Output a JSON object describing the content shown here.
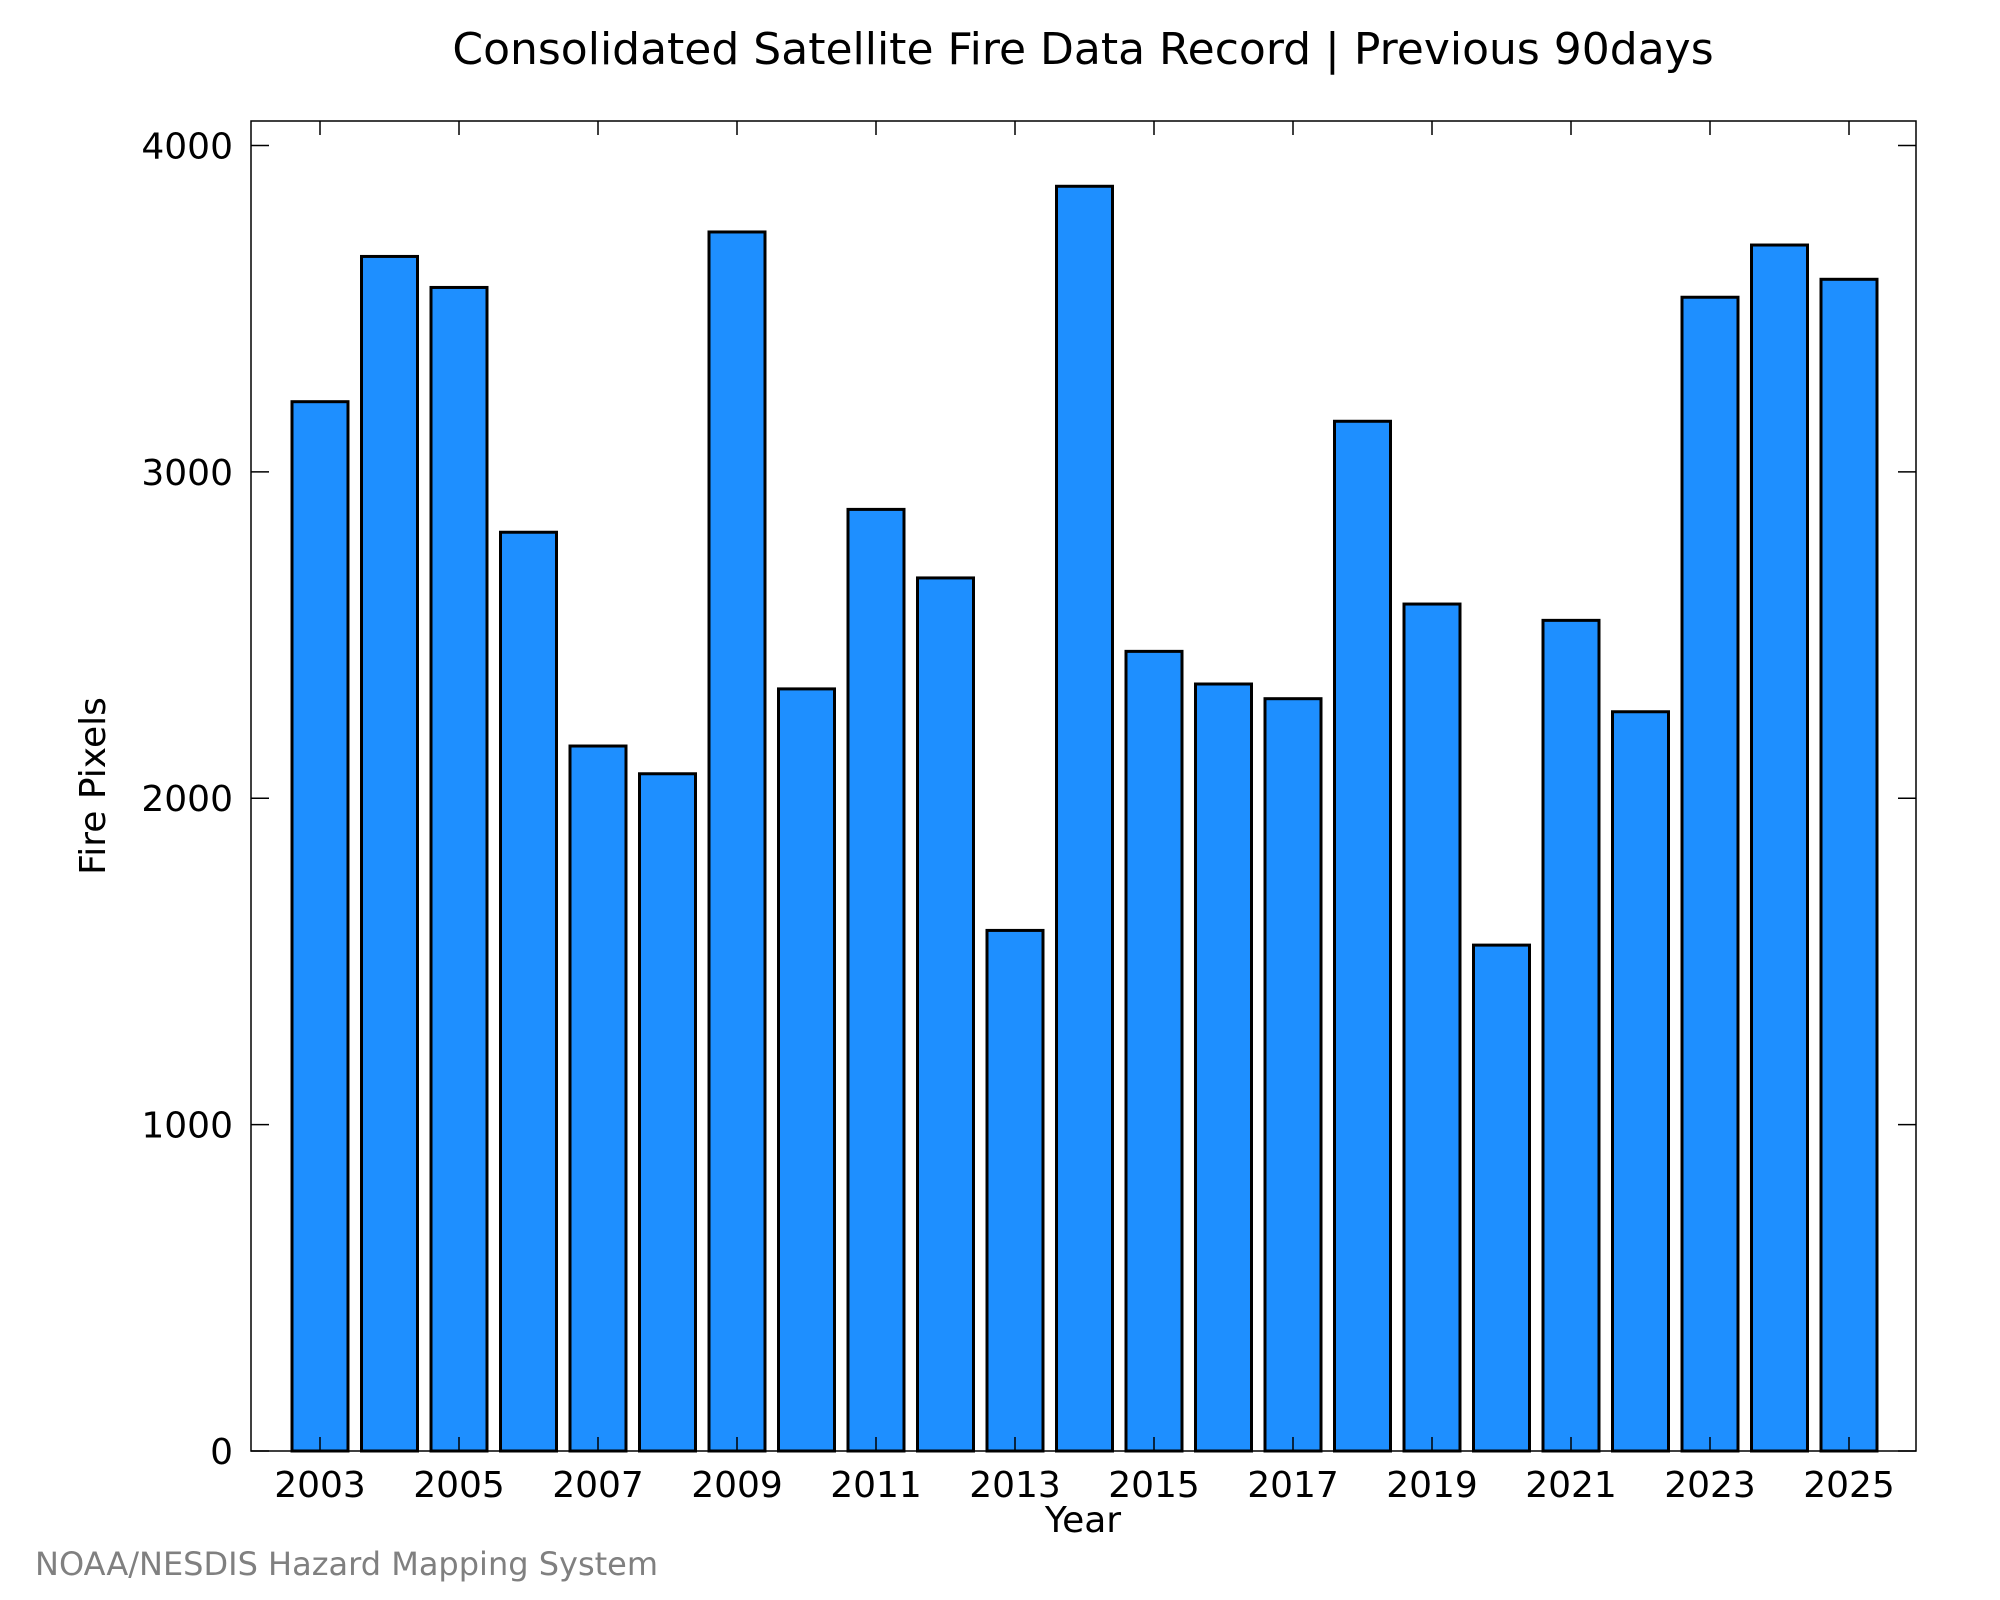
{
  "chart_data": {
    "type": "bar",
    "title": "Consolidated Satellite Fire Data Record | Previous 90days",
    "xlabel": "Year",
    "ylabel": "Fire Pixels",
    "categories": [
      "2003",
      "2004",
      "2005",
      "2006",
      "2007",
      "2008",
      "2009",
      "2010",
      "2011",
      "2012",
      "2013",
      "2014",
      "2015",
      "2016",
      "2017",
      "2018",
      "2019",
      "2020",
      "2021",
      "2022",
      "2023",
      "2024",
      "2025"
    ],
    "values": [
      3215,
      3660,
      3565,
      2815,
      2160,
      2075,
      3735,
      2335,
      2885,
      2675,
      1595,
      3875,
      2450,
      2350,
      2305,
      3155,
      2595,
      1550,
      2545,
      2265,
      3535,
      3695,
      3590
    ],
    "x_tick_labels": [
      "2003",
      "2005",
      "2007",
      "2009",
      "2011",
      "2013",
      "2015",
      "2017",
      "2019",
      "2021",
      "2023",
      "2025"
    ],
    "y_tick_labels": [
      "0",
      "1000",
      "2000",
      "3000",
      "4000"
    ],
    "ylim": [
      0,
      4075
    ],
    "grid": false,
    "legend": "none",
    "bar_color": "#1e8fff",
    "bar_edge_color": "#000000"
  },
  "credit": "NOAA/NESDIS Hazard Mapping System"
}
